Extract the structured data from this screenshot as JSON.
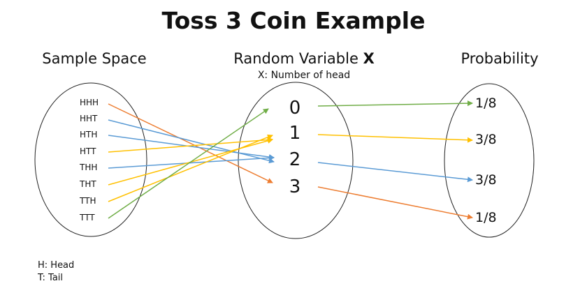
{
  "title": "Toss 3 Coin Example",
  "headers": {
    "sample_space": "Sample Space",
    "random_variable_prefix": "Random Variable ",
    "random_variable_symbol": "X",
    "random_variable_sub": "X: Number of head",
    "probability": "Probability"
  },
  "outcomes": [
    "HHH",
    "HHT",
    "HTH",
    "HTT",
    "THH",
    "THT",
    "TTH",
    "TTT"
  ],
  "values": [
    "0",
    "1",
    "2",
    "3"
  ],
  "probabilities": [
    "1/8",
    "3/8",
    "3/8",
    "1/8"
  ],
  "mapping_outcome_to_value": [
    3,
    2,
    2,
    1,
    2,
    1,
    1,
    0
  ],
  "value_colors": [
    "#70ad47",
    "#ffc000",
    "#5b9bd5",
    "#ed7d31"
  ],
  "legend": [
    "H: Head",
    "T: Tail"
  ]
}
